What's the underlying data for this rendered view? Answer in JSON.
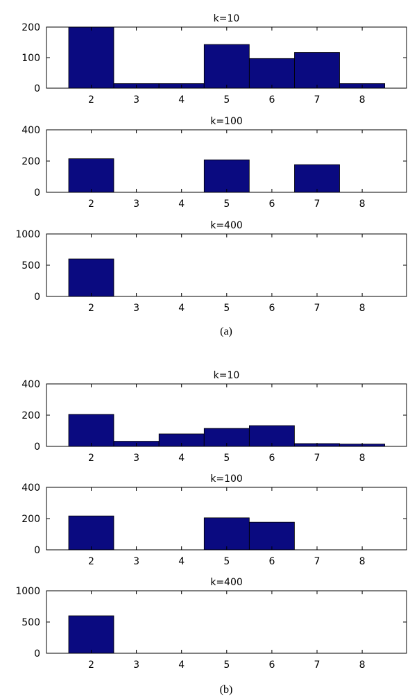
{
  "figure": {
    "captions": [
      "(a)",
      "(b)"
    ]
  },
  "chart_data": [
    {
      "type": "bar",
      "group": "(a)",
      "title": "k=10",
      "categories": [
        "2",
        "3",
        "4",
        "5",
        "6",
        "7",
        "8"
      ],
      "values": [
        200,
        15,
        15,
        143,
        97,
        117,
        15
      ],
      "ylim": [
        0,
        200
      ],
      "yticks": [
        "0",
        "100",
        "200"
      ],
      "xlabel": "",
      "ylabel": "",
      "bar_color": "#0a0a80"
    },
    {
      "type": "bar",
      "group": "(a)",
      "title": "k=100",
      "categories": [
        "2",
        "3",
        "4",
        "5",
        "6",
        "7",
        "8"
      ],
      "values": [
        215,
        0,
        0,
        208,
        0,
        177,
        0
      ],
      "ylim": [
        0,
        400
      ],
      "yticks": [
        "0",
        "200",
        "400"
      ],
      "xlabel": "",
      "ylabel": "",
      "bar_color": "#0a0a80"
    },
    {
      "type": "bar",
      "group": "(a)",
      "title": "k=400",
      "categories": [
        "2",
        "3",
        "4",
        "5",
        "6",
        "7",
        "8"
      ],
      "values": [
        600,
        0,
        0,
        0,
        0,
        0,
        0
      ],
      "ylim": [
        0,
        1000
      ],
      "yticks": [
        "0",
        "500",
        "1000"
      ],
      "xlabel": "",
      "ylabel": "",
      "bar_color": "#0a0a80"
    },
    {
      "type": "bar",
      "group": "(b)",
      "title": "k=10",
      "categories": [
        "2",
        "3",
        "4",
        "5",
        "6",
        "7",
        "8"
      ],
      "values": [
        205,
        33,
        80,
        115,
        133,
        18,
        15
      ],
      "ylim": [
        0,
        400
      ],
      "yticks": [
        "0",
        "200",
        "400"
      ],
      "xlabel": "",
      "ylabel": "",
      "bar_color": "#0a0a80"
    },
    {
      "type": "bar",
      "group": "(b)",
      "title": "k=100",
      "categories": [
        "2",
        "3",
        "4",
        "5",
        "6",
        "7",
        "8"
      ],
      "values": [
        217,
        0,
        0,
        205,
        177,
        0,
        0
      ],
      "ylim": [
        0,
        400
      ],
      "yticks": [
        "0",
        "200",
        "400"
      ],
      "xlabel": "",
      "ylabel": "",
      "bar_color": "#0a0a80"
    },
    {
      "type": "bar",
      "group": "(b)",
      "title": "k=400",
      "categories": [
        "2",
        "3",
        "4",
        "5",
        "6",
        "7",
        "8"
      ],
      "values": [
        600,
        0,
        0,
        0,
        0,
        0,
        0
      ],
      "ylim": [
        0,
        1000
      ],
      "yticks": [
        "0",
        "500",
        "1000"
      ],
      "xlabel": "",
      "ylabel": "",
      "bar_color": "#0a0a80"
    }
  ]
}
